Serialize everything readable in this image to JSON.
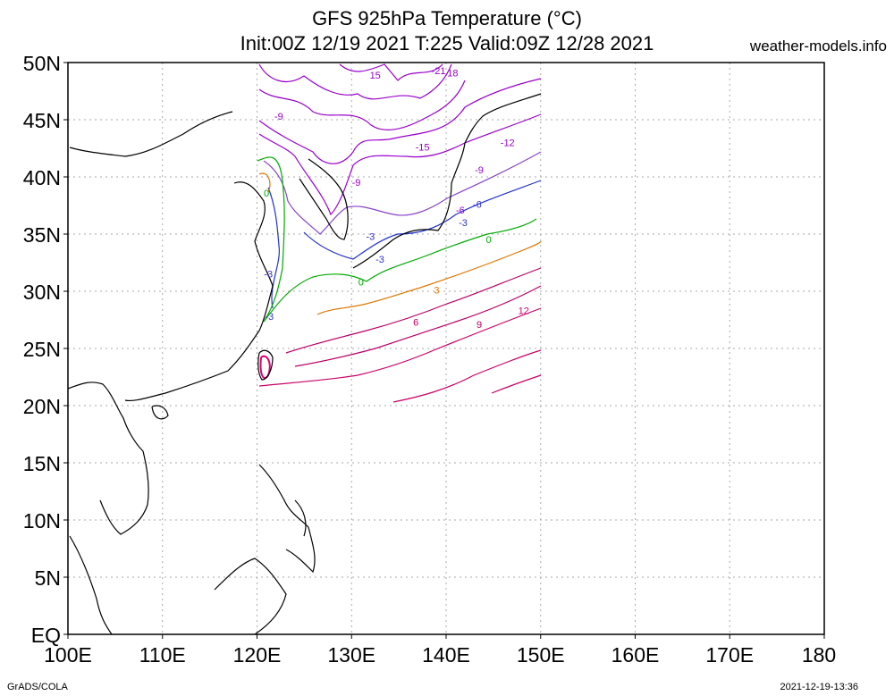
{
  "title_line1": "GFS 925hPa Temperature (°C)",
  "title_line2": "Init:00Z 12/19 2021 T:225 Valid:09Z 12/28 2021",
  "site": "weather-models.info",
  "footer_left": "GrADS/COLA",
  "footer_right": "2021-12-19-13:36",
  "map": {
    "lat_labels": [
      "50N",
      "45N",
      "40N",
      "35N",
      "30N",
      "25N",
      "20N",
      "15N",
      "10N",
      "5N",
      "EQ"
    ],
    "lon_labels": [
      "100E",
      "110E",
      "120E",
      "130E",
      "140E",
      "150E",
      "160E",
      "170E",
      "180"
    ],
    "contour_labels": [
      {
        "text": "-21",
        "lon": 139.2,
        "lat": 49.0,
        "color": "#9900cc"
      },
      {
        "text": "18",
        "lon": 140.7,
        "lat": 48.8,
        "color": "#9900cc"
      },
      {
        "text": "15",
        "lon": 132.5,
        "lat": 48.6,
        "color": "#9900cc"
      },
      {
        "text": "-9",
        "lon": 122.3,
        "lat": 45.0,
        "color": "#9900cc"
      },
      {
        "text": "-15",
        "lon": 137.5,
        "lat": 42.3,
        "color": "#9900cc"
      },
      {
        "text": "-12",
        "lon": 146.5,
        "lat": 42.7,
        "color": "#9900cc"
      },
      {
        "text": "-9",
        "lon": 143.5,
        "lat": 40.3,
        "color": "#9900cc"
      },
      {
        "text": "-9",
        "lon": 130.5,
        "lat": 39.2,
        "color": "#9900cc"
      },
      {
        "text": "-6",
        "lon": 141.5,
        "lat": 36.8,
        "color": "#9900cc"
      },
      {
        "text": "-6",
        "lon": 143.3,
        "lat": 37.3,
        "color": "#3333cc"
      },
      {
        "text": "-3",
        "lon": 141.8,
        "lat": 35.7,
        "color": "#3333cc"
      },
      {
        "text": "-3",
        "lon": 132.0,
        "lat": 34.5,
        "color": "#3333cc"
      },
      {
        "text": "-3",
        "lon": 133.0,
        "lat": 32.5,
        "color": "#3333cc"
      },
      {
        "text": "-3",
        "lon": 121.2,
        "lat": 31.2,
        "color": "#3333cc"
      },
      {
        "text": "-3",
        "lon": 121.3,
        "lat": 27.5,
        "color": "#3333cc"
      },
      {
        "text": "0",
        "lon": 144.5,
        "lat": 34.2,
        "color": "#00aa00"
      },
      {
        "text": "0",
        "lon": 131.0,
        "lat": 30.5,
        "color": "#00aa00"
      },
      {
        "text": "0",
        "lon": 121.0,
        "lat": 38.3,
        "color": "#00aa00"
      },
      {
        "text": "3",
        "lon": 139.0,
        "lat": 29.8,
        "color": "#dd7700"
      },
      {
        "text": "6",
        "lon": 136.8,
        "lat": 27.0,
        "color": "#bb0066"
      },
      {
        "text": "9",
        "lon": 143.5,
        "lat": 26.8,
        "color": "#bb0066"
      },
      {
        "text": "12",
        "lon": 148.2,
        "lat": 28.0,
        "color": "#dd0077"
      }
    ]
  }
}
